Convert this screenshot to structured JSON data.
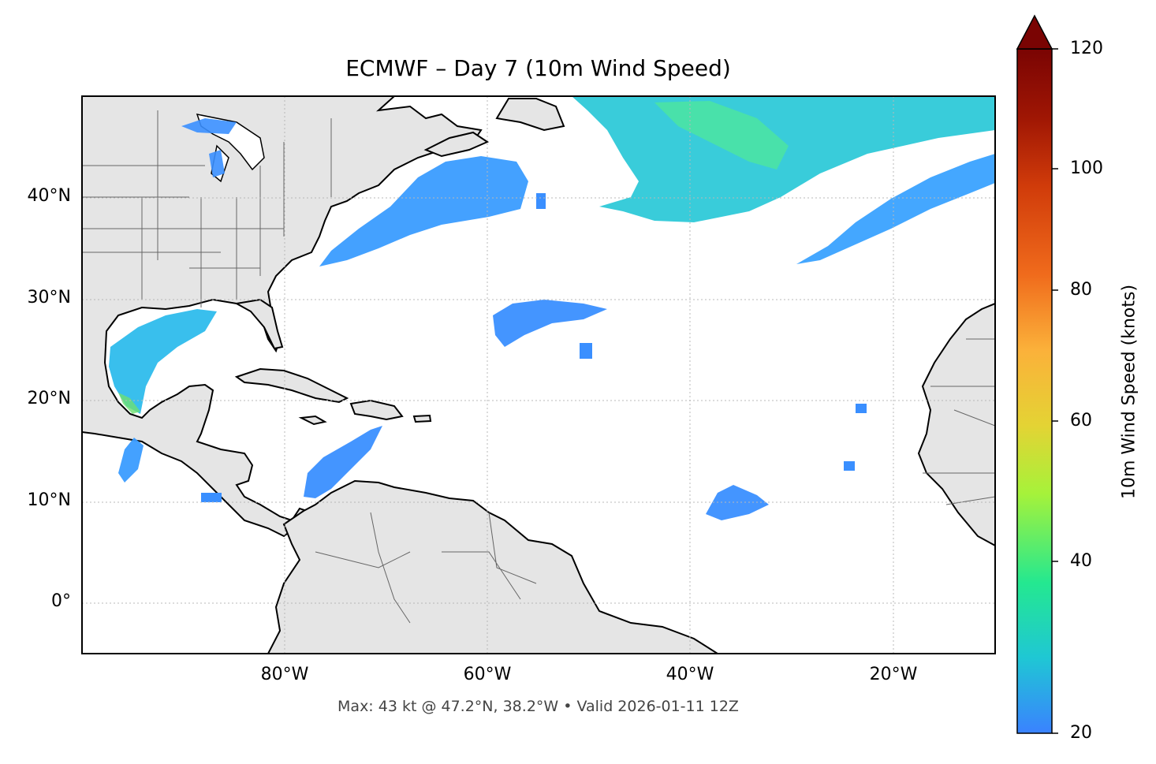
{
  "title": "ECMWF – Day 7 (10m Wind Speed)",
  "footer": "Max: 43 kt @ 47.2°N, 38.2°W • Valid 2026-01-11 12Z",
  "map": {
    "lon_ticks": [
      "80°W",
      "60°W",
      "40°W",
      "20°W"
    ],
    "lat_ticks": [
      "40°N",
      "30°N",
      "20°N",
      "10°N",
      "0°"
    ],
    "extent_lon": [
      -100,
      -10
    ],
    "extent_lat": [
      -5,
      50
    ],
    "grid": true,
    "land_color": "#e5e5e5",
    "coastline_color": "#000000",
    "border_color": "#666666"
  },
  "colorbar": {
    "label": "10m Wind Speed (knots)",
    "ticks": [
      "120",
      "100",
      "80",
      "60",
      "40",
      "20"
    ],
    "range": [
      20,
      120
    ],
    "extend": "max",
    "colormap": [
      "#3a82ff",
      "#1fc7d4",
      "#24e890",
      "#a6f23a",
      "#e4d334",
      "#fbb13a",
      "#f06b1c",
      "#d03b0a",
      "#9f1604",
      "#7a0403"
    ]
  },
  "wind_areas": [
    {
      "name": "north-atlantic-jet",
      "lon": [
        -53,
        -10
      ],
      "lat": [
        37,
        50
      ],
      "peak_kt": 43
    },
    {
      "name": "us-east-coast-band",
      "lon": [
        -80,
        -58
      ],
      "lat": [
        33,
        45
      ],
      "peak_kt": 30
    },
    {
      "name": "eastern-atlantic-band",
      "lon": [
        -30,
        -10
      ],
      "lat": [
        34,
        44
      ],
      "peak_kt": 28
    },
    {
      "name": "gulf-of-mexico",
      "lon": [
        -97,
        -87
      ],
      "lat": [
        19,
        29
      ],
      "peak_kt": 38
    },
    {
      "name": "caribbean-trades",
      "lon": [
        -78,
        -70
      ],
      "lat": [
        11,
        17
      ],
      "peak_kt": 25
    },
    {
      "name": "subtropical-atlantic",
      "lon": [
        -60,
        -48
      ],
      "lat": [
        25,
        30
      ],
      "peak_kt": 24
    },
    {
      "name": "central-atlantic-itcz",
      "lon": [
        -38,
        -32
      ],
      "lat": [
        9,
        12
      ],
      "peak_kt": 23
    }
  ]
}
